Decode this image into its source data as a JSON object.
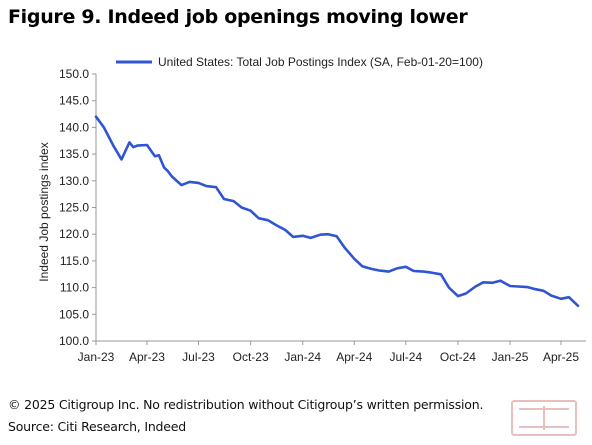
{
  "figure": {
    "title": "Figure 9. Indeed job openings moving lower",
    "copyright": "© 2025 Citigroup Inc. No redistribution without Citigroup’s written permission.",
    "source": "Source: Citi Research, Indeed"
  },
  "colors": {
    "line": "#2f55d4",
    "axis": "#9a9a9a",
    "text": "#222222"
  },
  "chart_data": {
    "type": "line",
    "title": "Figure 9. Indeed job openings moving lower",
    "xlabel": "",
    "ylabel": "Indeed Job postings index",
    "ylim": [
      100,
      150
    ],
    "yticks": [
      "100.0",
      "105.0",
      "110.0",
      "115.0",
      "120.0",
      "125.0",
      "130.0",
      "135.0",
      "140.0",
      "145.0",
      "150.0"
    ],
    "xticks": [
      "Jan-23",
      "Apr-23",
      "Jul-23",
      "Oct-23",
      "Jan-24",
      "Apr-24",
      "Jul-24",
      "Oct-24",
      "Jan-25",
      "Apr-25"
    ],
    "legend": "top",
    "grid": false,
    "series": [
      {
        "name": "United States: Total Job Postings Index (SA, Feb-01-20=100)",
        "x": [
          "2023-01-01",
          "2023-01-15",
          "2023-02-01",
          "2023-02-15",
          "2023-03-01",
          "2023-03-08",
          "2023-03-15",
          "2023-04-01",
          "2023-04-15",
          "2023-04-22",
          "2023-05-01",
          "2023-05-08",
          "2023-05-15",
          "2023-06-01",
          "2023-06-15",
          "2023-07-01",
          "2023-07-15",
          "2023-08-01",
          "2023-08-15",
          "2023-09-01",
          "2023-09-15",
          "2023-10-01",
          "2023-10-15",
          "2023-11-01",
          "2023-11-15",
          "2023-12-01",
          "2023-12-15",
          "2024-01-01",
          "2024-01-15",
          "2024-02-01",
          "2024-02-15",
          "2024-03-01",
          "2024-03-15",
          "2024-04-01",
          "2024-04-15",
          "2024-05-01",
          "2024-05-15",
          "2024-06-01",
          "2024-06-15",
          "2024-07-01",
          "2024-07-15",
          "2024-08-01",
          "2024-08-15",
          "2024-09-01",
          "2024-09-15",
          "2024-10-01",
          "2024-10-15",
          "2024-11-01",
          "2024-11-15",
          "2024-12-01",
          "2024-12-15",
          "2025-01-01",
          "2025-01-15",
          "2025-02-01",
          "2025-02-15",
          "2025-03-01",
          "2025-03-15",
          "2025-04-01",
          "2025-04-15",
          "2025-05-01"
        ],
        "values": [
          142.0,
          140.0,
          136.5,
          134.0,
          137.2,
          136.3,
          136.6,
          136.7,
          134.6,
          134.8,
          132.5,
          131.8,
          130.8,
          129.2,
          129.8,
          129.6,
          129.0,
          128.8,
          126.6,
          126.2,
          125.0,
          124.4,
          123.0,
          122.6,
          121.7,
          120.8,
          119.5,
          119.7,
          119.3,
          119.9,
          120.0,
          119.6,
          117.5,
          115.4,
          114.0,
          113.5,
          113.2,
          113.0,
          113.6,
          113.9,
          113.1,
          113.0,
          112.8,
          112.5,
          110.0,
          108.4,
          108.9,
          110.2,
          111.0,
          110.9,
          111.3,
          110.3,
          110.2,
          110.1,
          109.7,
          109.4,
          108.5,
          107.9,
          108.2,
          106.6
        ]
      }
    ]
  }
}
